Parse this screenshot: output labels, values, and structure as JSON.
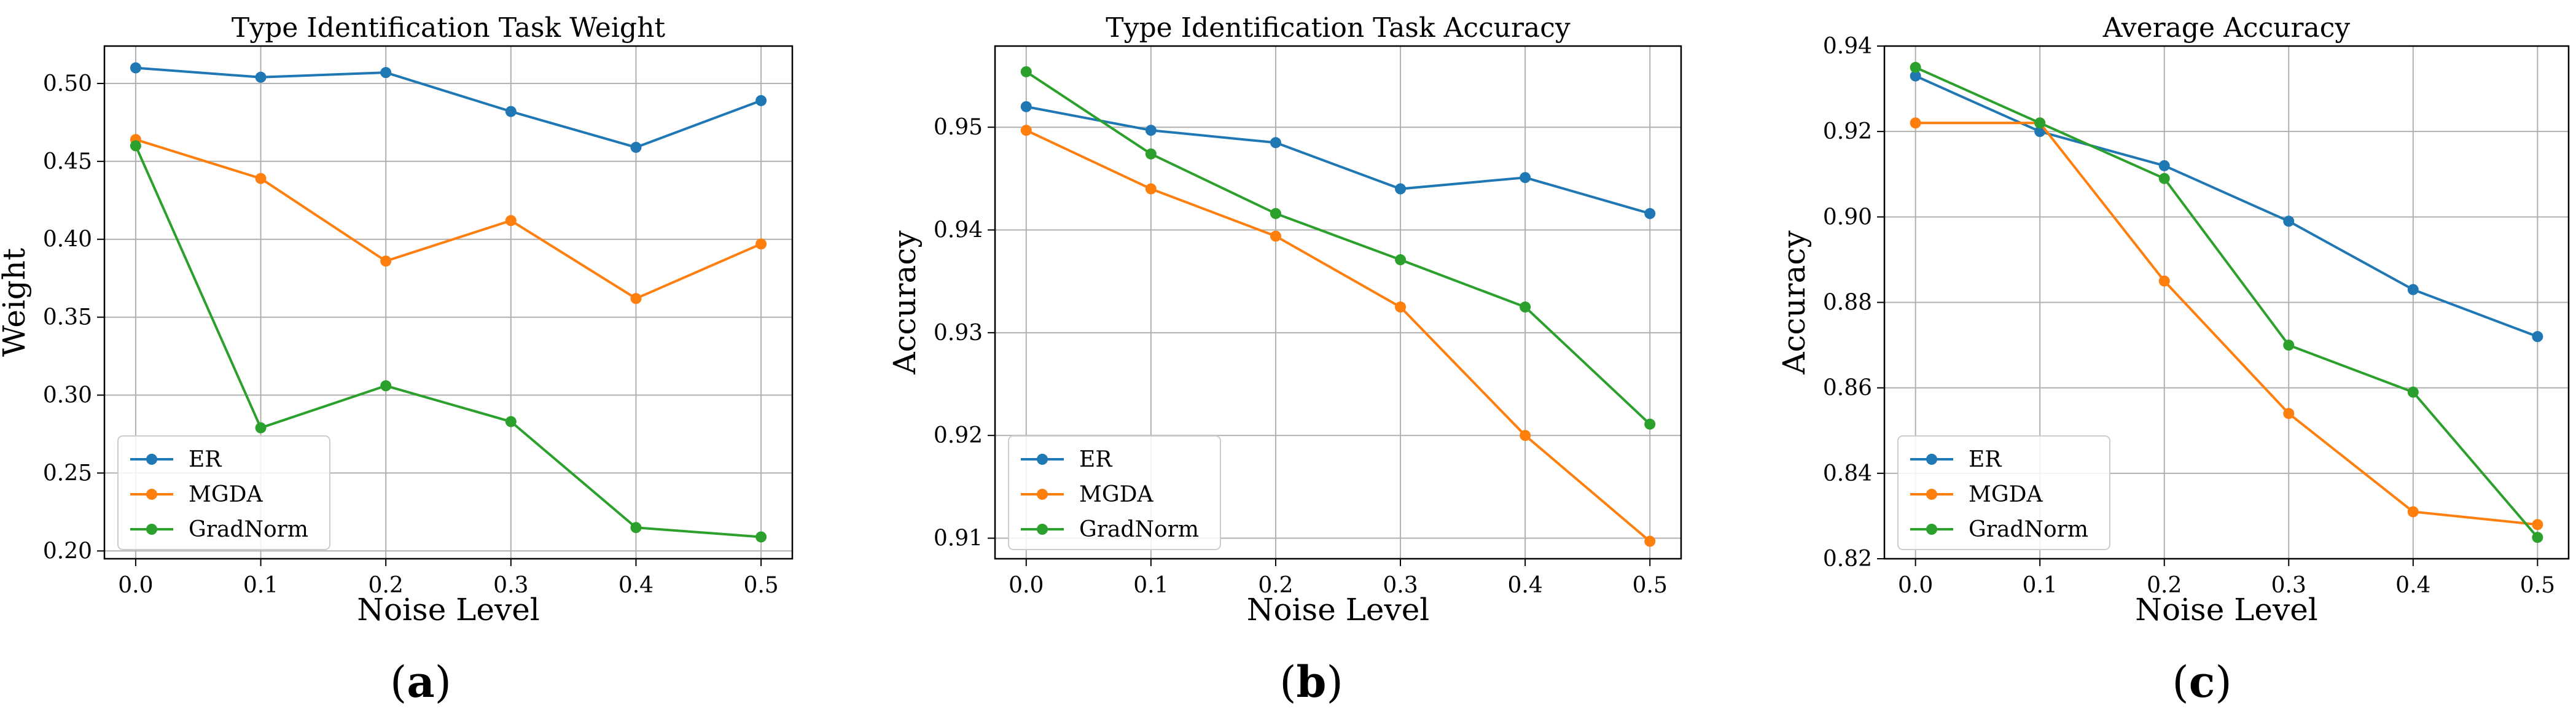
{
  "chart_data": [
    {
      "type": "line",
      "title": "Type Identification Task Weight",
      "xlabel": "Noise Level",
      "ylabel": "Weight",
      "x": [
        0.0,
        0.1,
        0.2,
        0.3,
        0.4,
        0.5
      ],
      "xticks": [
        "0.0",
        "0.1",
        "0.2",
        "0.3",
        "0.4",
        "0.5"
      ],
      "xlim": [
        -0.025,
        0.525
      ],
      "ylim": [
        0.195,
        0.524
      ],
      "yticks": [
        0.2,
        0.25,
        0.3,
        0.35,
        0.4,
        0.45,
        0.5
      ],
      "ytick_labels": [
        "0.20",
        "0.25",
        "0.30",
        "0.35",
        "0.40",
        "0.45",
        "0.50"
      ],
      "grid": true,
      "legend_position": "lower-left",
      "caption": "(a)",
      "series": [
        {
          "name": "ER",
          "color": "#1f77b4",
          "values": [
            0.51,
            0.504,
            0.507,
            0.482,
            0.459,
            0.489
          ]
        },
        {
          "name": "MGDA",
          "color": "#ff7f0e",
          "values": [
            0.464,
            0.439,
            0.386,
            0.412,
            0.362,
            0.397
          ]
        },
        {
          "name": "GradNorm",
          "color": "#2ca02c",
          "values": [
            0.46,
            0.279,
            0.306,
            0.283,
            0.215,
            0.209
          ]
        }
      ]
    },
    {
      "type": "line",
      "title": "Type Identification Task Accuracy",
      "xlabel": "Noise Level",
      "ylabel": "Accuracy",
      "x": [
        0.0,
        0.1,
        0.2,
        0.3,
        0.4,
        0.5
      ],
      "xticks": [
        "0.0",
        "0.1",
        "0.2",
        "0.3",
        "0.4",
        "0.5"
      ],
      "xlim": [
        -0.025,
        0.525
      ],
      "ylim": [
        0.908,
        0.9579
      ],
      "yticks": [
        0.91,
        0.92,
        0.93,
        0.94,
        0.95
      ],
      "ytick_labels": [
        "0.91",
        "0.92",
        "0.93",
        "0.94",
        "0.95"
      ],
      "grid": true,
      "legend_position": "lower-left",
      "caption": "(b)",
      "series": [
        {
          "name": "ER",
          "color": "#1f77b4",
          "values": [
            0.952,
            0.9497,
            0.9485,
            0.944,
            0.9451,
            0.9416
          ]
        },
        {
          "name": "MGDA",
          "color": "#ff7f0e",
          "values": [
            0.9497,
            0.944,
            0.9394,
            0.9325,
            0.92,
            0.9097
          ]
        },
        {
          "name": "GradNorm",
          "color": "#2ca02c",
          "values": [
            0.9554,
            0.9474,
            0.9416,
            0.9371,
            0.9325,
            0.9211
          ]
        }
      ]
    },
    {
      "type": "line",
      "title": "Average Accuracy",
      "xlabel": "Noise Level",
      "ylabel": "Accuracy",
      "x": [
        0.0,
        0.1,
        0.2,
        0.3,
        0.4,
        0.5
      ],
      "xticks": [
        "0.0",
        "0.1",
        "0.2",
        "0.3",
        "0.4",
        "0.5"
      ],
      "xlim": [
        -0.025,
        0.525
      ],
      "ylim": [
        0.82,
        0.94
      ],
      "yticks": [
        0.82,
        0.84,
        0.86,
        0.88,
        0.9,
        0.92,
        0.94
      ],
      "ytick_labels": [
        "0.82",
        "0.84",
        "0.86",
        "0.88",
        "0.90",
        "0.92",
        "0.94"
      ],
      "grid": true,
      "legend_position": "lower-left",
      "caption": "(c)",
      "series": [
        {
          "name": "ER",
          "color": "#1f77b4",
          "values": [
            0.933,
            0.92,
            0.912,
            0.899,
            0.883,
            0.872
          ]
        },
        {
          "name": "MGDA",
          "color": "#ff7f0e",
          "values": [
            0.922,
            0.922,
            0.885,
            0.854,
            0.831,
            0.828
          ]
        },
        {
          "name": "GradNorm",
          "color": "#2ca02c",
          "values": [
            0.935,
            0.922,
            0.909,
            0.87,
            0.859,
            0.825
          ]
        }
      ]
    }
  ]
}
